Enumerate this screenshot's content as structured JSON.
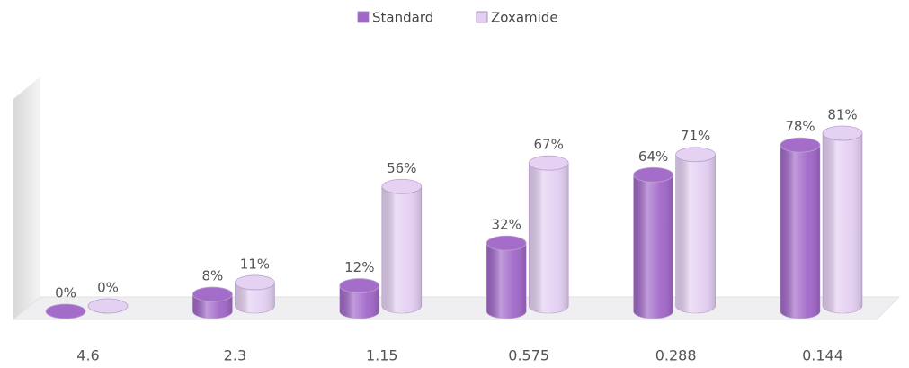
{
  "chart_data": {
    "type": "bar",
    "categories": [
      "4.6",
      "2.3",
      "1.15",
      "0.575",
      "0.288",
      "0.144"
    ],
    "series": [
      {
        "name": "Standard",
        "color": "#a066c8",
        "values": [
          0,
          8,
          12,
          32,
          64,
          78
        ],
        "value_labels": [
          "0%",
          "8%",
          "12%",
          "32%",
          "64%",
          "78%"
        ]
      },
      {
        "name": "Zoxamide",
        "color": "#e4cff2",
        "values": [
          0,
          11,
          56,
          67,
          71,
          81
        ],
        "value_labels": [
          "0%",
          "11%",
          "56%",
          "67%",
          "71%",
          "81%"
        ]
      }
    ],
    "ylim": [
      0,
      100
    ],
    "legend": "top"
  }
}
